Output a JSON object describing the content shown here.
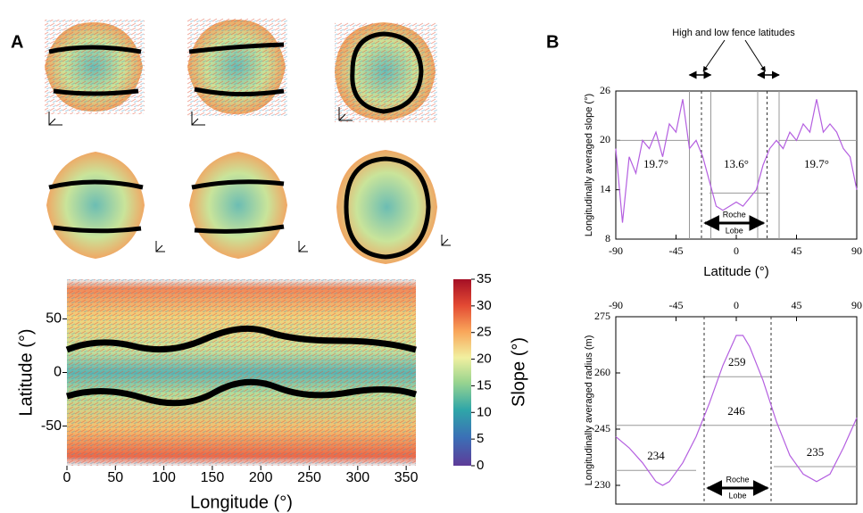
{
  "chart_data": [
    {
      "type": "heatmap",
      "panel": "A",
      "xlabel": "Longitude (°)",
      "ylabel": "Latitude (°)",
      "xlim": [
        0,
        360
      ],
      "xticks": [
        0,
        50,
        100,
        150,
        200,
        250,
        300,
        350
      ],
      "ylim": [
        -87,
        87
      ],
      "yticks": [
        -50,
        0,
        50
      ],
      "colorbar": {
        "label": "Slope (°)",
        "lim": [
          0,
          35
        ],
        "ticks": [
          0,
          5,
          10,
          15,
          20,
          25,
          30,
          35
        ]
      }
    },
    {
      "type": "line",
      "panel": "B",
      "header": "High and low fence latitudes",
      "xlabel": "Latitude (°)",
      "ylabel": "Longitudinally averaged slope (°)",
      "x": [
        -90,
        -85,
        -80,
        -75,
        -70,
        -65,
        -60,
        -55,
        -50,
        -45,
        -40,
        -35,
        -30,
        -25,
        -20,
        -15,
        -10,
        -5,
        0,
        5,
        10,
        15,
        20,
        25,
        30,
        35,
        40,
        45,
        50,
        55,
        60,
        65,
        70,
        75,
        80,
        85,
        90
      ],
      "series": [
        {
          "color": "#b45fe0",
          "values": [
            19,
            10,
            18,
            16,
            20,
            19,
            21,
            18,
            22,
            21,
            25,
            19,
            20,
            18,
            15,
            12,
            11.5,
            12,
            12.5,
            12,
            13,
            14,
            17,
            19,
            20,
            19,
            21,
            20,
            22,
            21,
            25,
            21,
            22,
            21,
            19,
            18,
            14
          ]
        }
      ],
      "xlim": [
        -90,
        90
      ],
      "xticks": [
        -90,
        -45,
        0,
        45,
        90
      ],
      "ylim": [
        8,
        26
      ],
      "yticks": [
        8,
        14,
        20,
        26
      ],
      "hlines": [
        {
          "y": 20,
          "x": [
            -90,
            -35
          ]
        },
        {
          "y": 13.6,
          "x": [
            -20,
            25
          ]
        },
        {
          "y": 20,
          "x": [
            32,
            90
          ]
        }
      ],
      "vlines": [
        {
          "x": -35,
          "style": "solid"
        },
        {
          "x": -26,
          "style": "dashed"
        },
        {
          "x": -19,
          "style": "solid"
        },
        {
          "x": 16,
          "style": "solid"
        },
        {
          "x": 23,
          "style": "dashed"
        },
        {
          "x": 32,
          "style": "solid"
        }
      ],
      "annotations": [
        "19.7°",
        "13.6°",
        "19.7°"
      ],
      "roche_label": [
        "Roche",
        "Lobe"
      ]
    },
    {
      "type": "line",
      "ylabel": "Longitudinally averaged radius (m)",
      "x": [
        -90,
        -80,
        -70,
        -60,
        -55,
        -50,
        -40,
        -30,
        -20,
        -10,
        0,
        5,
        10,
        20,
        30,
        40,
        50,
        60,
        70,
        80,
        90
      ],
      "series": [
        {
          "color": "#b45fe0",
          "values": [
            243,
            240,
            236,
            231,
            230,
            231,
            236,
            243,
            252,
            262,
            270,
            270,
            267,
            258,
            247,
            238,
            233,
            231,
            233,
            240,
            248
          ]
        }
      ],
      "xlim": [
        -90,
        90
      ],
      "xticks": [
        -90,
        -45,
        0,
        45,
        90
      ],
      "xaxis": "top",
      "ylim": [
        225,
        275
      ],
      "yticks": [
        230,
        245,
        260,
        275
      ],
      "hlines": [
        {
          "y": 259,
          "x": [
            -25,
            26
          ]
        },
        {
          "y": 246,
          "x": [
            -90,
            90
          ]
        },
        {
          "y": 234,
          "x": [
            -90,
            -30
          ]
        },
        {
          "y": 235,
          "x": [
            28,
            90
          ]
        }
      ],
      "vlines": [
        {
          "x": -24,
          "style": "dashed"
        },
        {
          "x": 26,
          "style": "dashed"
        }
      ],
      "roche_label": [
        "Roche",
        "Lobe"
      ]
    }
  ]
}
